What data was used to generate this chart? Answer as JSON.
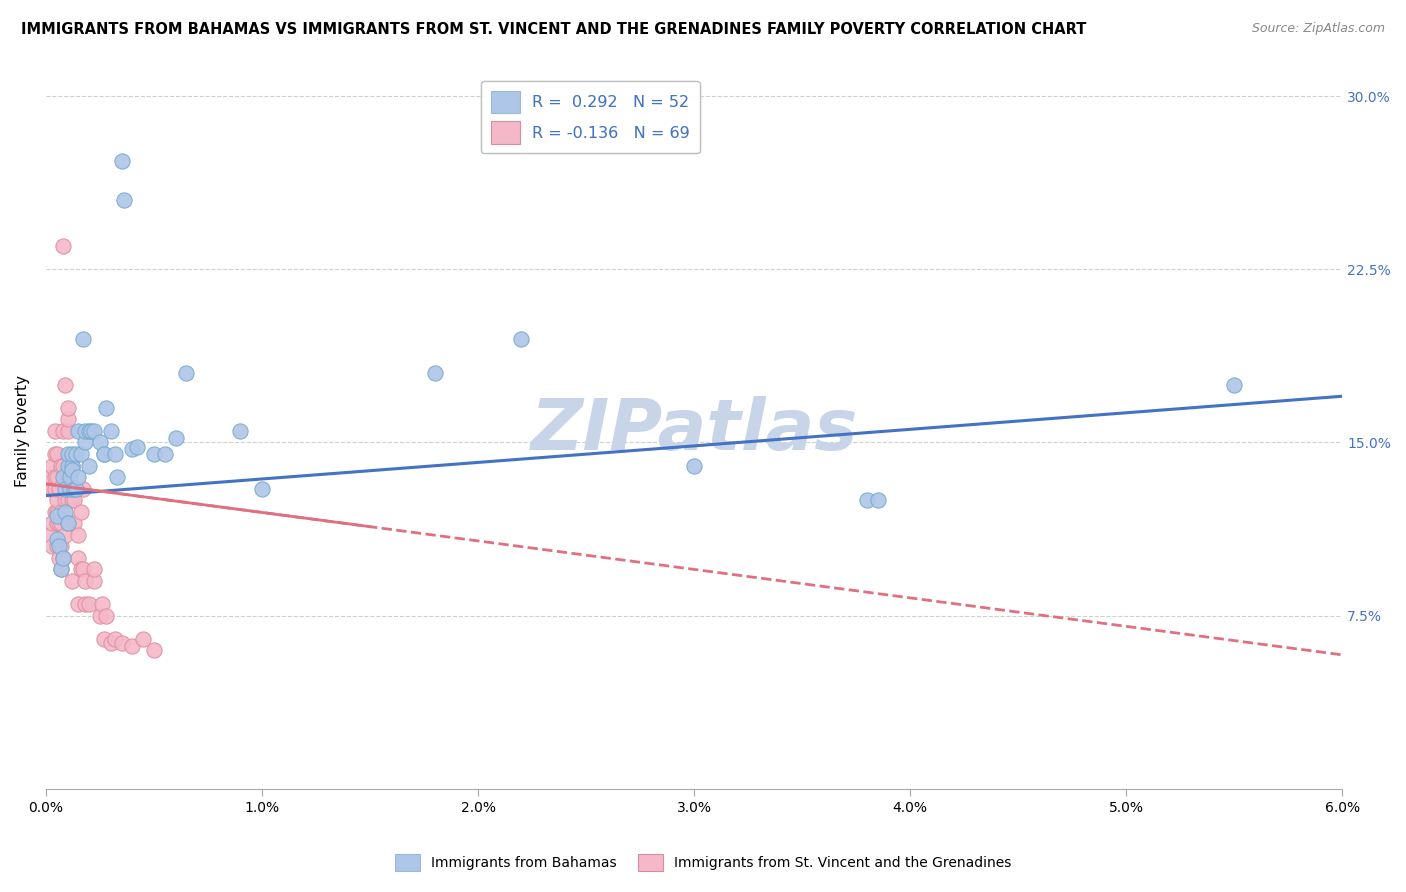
{
  "title": "IMMIGRANTS FROM BAHAMAS VS IMMIGRANTS FROM ST. VINCENT AND THE GRENADINES FAMILY POVERTY CORRELATION CHART",
  "source": "Source: ZipAtlas.com",
  "ylabel_label": "Family Poverty",
  "watermark": "ZIPatlas",
  "legend_entries": [
    {
      "label": "R =  0.292   N = 52",
      "color": "#aec6e8",
      "r_color": "#4472c4",
      "n_color": "#4472c4"
    },
    {
      "label": "R = -0.136   N = 69",
      "color": "#f4b8c8",
      "r_color": "#c0504d",
      "n_color": "#c0504d"
    }
  ],
  "legend_bottom": [
    {
      "label": "Immigrants from Bahamas",
      "color": "#aec6e8"
    },
    {
      "label": "Immigrants from St. Vincent and the Grenadines",
      "color": "#f4b8c8"
    }
  ],
  "blue_scatter": [
    [
      0.0005,
      0.108
    ],
    [
      0.0005,
      0.118
    ],
    [
      0.0006,
      0.105
    ],
    [
      0.0007,
      0.095
    ],
    [
      0.0008,
      0.135
    ],
    [
      0.0008,
      0.1
    ],
    [
      0.0009,
      0.12
    ],
    [
      0.0009,
      0.13
    ],
    [
      0.001,
      0.14
    ],
    [
      0.001,
      0.145
    ],
    [
      0.001,
      0.115
    ],
    [
      0.0011,
      0.13
    ],
    [
      0.0011,
      0.135
    ],
    [
      0.0012,
      0.14
    ],
    [
      0.0012,
      0.145
    ],
    [
      0.0012,
      0.138
    ],
    [
      0.0013,
      0.13
    ],
    [
      0.0014,
      0.13
    ],
    [
      0.0014,
      0.145
    ],
    [
      0.0015,
      0.135
    ],
    [
      0.0015,
      0.155
    ],
    [
      0.0016,
      0.145
    ],
    [
      0.0017,
      0.195
    ],
    [
      0.0018,
      0.15
    ],
    [
      0.0018,
      0.155
    ],
    [
      0.002,
      0.14
    ],
    [
      0.002,
      0.155
    ],
    [
      0.0021,
      0.155
    ],
    [
      0.0022,
      0.155
    ],
    [
      0.0025,
      0.15
    ],
    [
      0.0027,
      0.145
    ],
    [
      0.0027,
      0.145
    ],
    [
      0.0028,
      0.165
    ],
    [
      0.003,
      0.155
    ],
    [
      0.0032,
      0.145
    ],
    [
      0.0033,
      0.135
    ],
    [
      0.0035,
      0.272
    ],
    [
      0.0036,
      0.255
    ],
    [
      0.004,
      0.147
    ],
    [
      0.0042,
      0.148
    ],
    [
      0.005,
      0.145
    ],
    [
      0.0055,
      0.145
    ],
    [
      0.006,
      0.152
    ],
    [
      0.0065,
      0.18
    ],
    [
      0.009,
      0.155
    ],
    [
      0.01,
      0.13
    ],
    [
      0.018,
      0.18
    ],
    [
      0.022,
      0.195
    ],
    [
      0.03,
      0.14
    ],
    [
      0.038,
      0.125
    ],
    [
      0.0385,
      0.125
    ],
    [
      0.055,
      0.175
    ]
  ],
  "pink_scatter": [
    [
      0.0002,
      0.11
    ],
    [
      0.0002,
      0.13
    ],
    [
      0.0002,
      0.135
    ],
    [
      0.0003,
      0.105
    ],
    [
      0.0003,
      0.115
    ],
    [
      0.0003,
      0.13
    ],
    [
      0.0003,
      0.14
    ],
    [
      0.0004,
      0.12
    ],
    [
      0.0004,
      0.13
    ],
    [
      0.0004,
      0.135
    ],
    [
      0.0004,
      0.145
    ],
    [
      0.0004,
      0.155
    ],
    [
      0.0005,
      0.105
    ],
    [
      0.0005,
      0.115
    ],
    [
      0.0005,
      0.12
    ],
    [
      0.0005,
      0.125
    ],
    [
      0.0005,
      0.135
    ],
    [
      0.0005,
      0.145
    ],
    [
      0.0006,
      0.1
    ],
    [
      0.0006,
      0.115
    ],
    [
      0.0006,
      0.13
    ],
    [
      0.0007,
      0.095
    ],
    [
      0.0007,
      0.105
    ],
    [
      0.0007,
      0.115
    ],
    [
      0.0007,
      0.12
    ],
    [
      0.0007,
      0.14
    ],
    [
      0.0008,
      0.1
    ],
    [
      0.0008,
      0.14
    ],
    [
      0.0008,
      0.155
    ],
    [
      0.0008,
      0.235
    ],
    [
      0.0009,
      0.11
    ],
    [
      0.0009,
      0.125
    ],
    [
      0.0009,
      0.175
    ],
    [
      0.001,
      0.115
    ],
    [
      0.001,
      0.125
    ],
    [
      0.001,
      0.135
    ],
    [
      0.001,
      0.155
    ],
    [
      0.001,
      0.16
    ],
    [
      0.001,
      0.165
    ],
    [
      0.0011,
      0.14
    ],
    [
      0.0011,
      0.14
    ],
    [
      0.0012,
      0.09
    ],
    [
      0.0012,
      0.125
    ],
    [
      0.0012,
      0.13
    ],
    [
      0.0012,
      0.14
    ],
    [
      0.0013,
      0.115
    ],
    [
      0.0013,
      0.125
    ],
    [
      0.0015,
      0.08
    ],
    [
      0.0015,
      0.1
    ],
    [
      0.0015,
      0.11
    ],
    [
      0.0016,
      0.095
    ],
    [
      0.0016,
      0.12
    ],
    [
      0.0017,
      0.095
    ],
    [
      0.0017,
      0.13
    ],
    [
      0.0018,
      0.08
    ],
    [
      0.0018,
      0.09
    ],
    [
      0.002,
      0.08
    ],
    [
      0.0022,
      0.09
    ],
    [
      0.0022,
      0.095
    ],
    [
      0.0025,
      0.075
    ],
    [
      0.0026,
      0.08
    ],
    [
      0.0027,
      0.065
    ],
    [
      0.0028,
      0.075
    ],
    [
      0.003,
      0.063
    ],
    [
      0.0032,
      0.065
    ],
    [
      0.0035,
      0.063
    ],
    [
      0.004,
      0.062
    ],
    [
      0.0045,
      0.065
    ],
    [
      0.005,
      0.06
    ]
  ],
  "blue_line_x": [
    0.0,
    0.06
  ],
  "blue_line_y": [
    0.127,
    0.17
  ],
  "pink_line_x": [
    0.0,
    0.06
  ],
  "pink_line_y": [
    0.132,
    0.058
  ],
  "xlim": [
    0.0,
    0.06
  ],
  "ylim": [
    0.0,
    0.31
  ],
  "y_ticks": [
    0.075,
    0.15,
    0.225,
    0.3
  ],
  "y_tick_labels": [
    "7.5%",
    "15.0%",
    "22.5%",
    "30.0%"
  ],
  "x_ticks": [
    0.0,
    0.01,
    0.02,
    0.03,
    0.04,
    0.05,
    0.06
  ],
  "x_tick_labels": [
    "0.0%",
    "1.0%",
    "2.0%",
    "3.0%",
    "4.0%",
    "5.0%",
    "6.0%"
  ],
  "background_color": "#ffffff",
  "grid_color": "#d0d0d0",
  "blue_line_color": "#4472c4",
  "blue_scatter_face": "#aec6e8",
  "blue_scatter_edge": "#7aaad0",
  "pink_line_color": "#e07080",
  "pink_scatter_face": "#f4b8c8",
  "pink_scatter_edge": "#e090a0",
  "title_fontsize": 10.5,
  "source_fontsize": 9,
  "watermark_color": "#c8d4e8",
  "watermark_fontsize": 52,
  "axis_label_color": "#4472c4"
}
